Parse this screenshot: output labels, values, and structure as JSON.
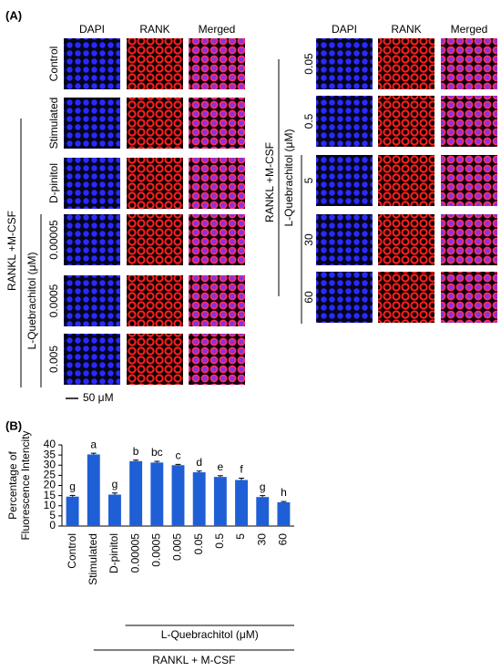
{
  "panel_a": {
    "label": "(A)",
    "left": {
      "columns": [
        "DAPI",
        "RANK",
        "Merged"
      ],
      "rows": [
        "Control",
        "Stimulated",
        "D-pinitol",
        "0.00005",
        "0.0005",
        "0.005"
      ],
      "group_label": "RANKL +M-CSF",
      "subgroup_label": "L-Quebrachitol (μM)",
      "scale_bar": "50 μM"
    },
    "right": {
      "columns": [
        "DAPI",
        "RANK",
        "Merged"
      ],
      "rows": [
        "0.05",
        "0.5",
        "5",
        "30",
        "60"
      ],
      "group_label": "RANKL +M-CSF",
      "subgroup_label": "L-Quebrachitol (μM)"
    }
  },
  "chart_data": {
    "type": "bar",
    "label": "(B)",
    "y_label": [
      "Percentage of",
      "Fluorescence Intencity"
    ],
    "categories": [
      "Control",
      "Stimulated",
      "D-pinitol",
      "0.00005",
      "0.0005",
      "0.005",
      "0.05",
      "0.5",
      "5",
      "30",
      "60"
    ],
    "values": [
      14.5,
      35.3,
      15.5,
      32,
      31.3,
      30,
      26.5,
      24.2,
      22.7,
      14.3,
      11.7
    ],
    "errors": [
      0.6,
      0.6,
      0.8,
      0.5,
      0.6,
      0.4,
      0.6,
      0.6,
      0.9,
      0.7,
      0.4
    ],
    "letters": [
      "g",
      "a",
      "g",
      "b",
      "bc",
      "c",
      "d",
      "e",
      "f",
      "g",
      "h"
    ],
    "ylim": [
      0,
      40
    ],
    "yticks": [
      0,
      5,
      10,
      15,
      20,
      25,
      30,
      35,
      40
    ],
    "color": "#1f5fd6",
    "subgroup_label": "L-Quebrachitol (μM)",
    "group_label": "RANKL + M-CSF"
  }
}
